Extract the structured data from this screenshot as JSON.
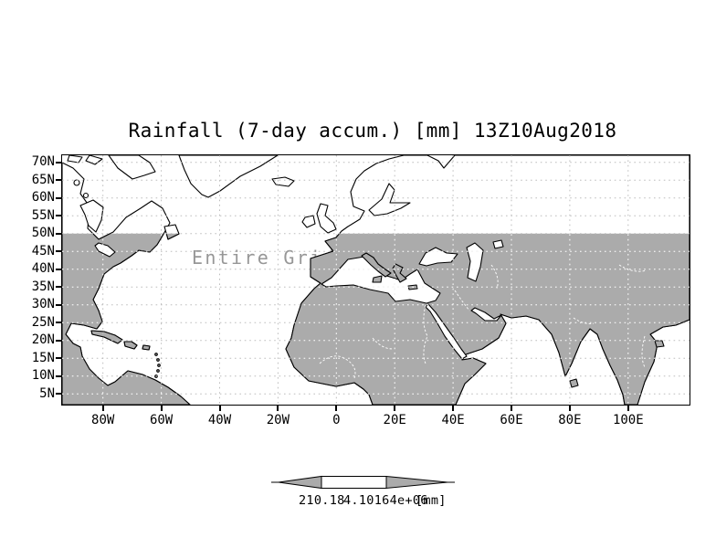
{
  "title": "Rainfall (7-day accum.) [mm] 13Z10Aug2018",
  "map": {
    "warning_text": "Entire Grid Undefined",
    "lat_labels": [
      "70N",
      "65N",
      "60N",
      "55N",
      "50N",
      "45N",
      "40N",
      "35N",
      "30N",
      "25N",
      "20N",
      "15N",
      "10N",
      "5N"
    ],
    "lon_labels": [
      "80W",
      "60W",
      "40W",
      "20W",
      "0",
      "20E",
      "40E",
      "60E",
      "80E",
      "100E"
    ],
    "colors": {
      "land_undefined_gray": "#ababab",
      "gridline_gray": "#bdbdbd",
      "warning_text_gray": "#979797",
      "coastline": "#000000"
    }
  },
  "colorbar": {
    "left_label": "210.18",
    "right_label": "4.10164e+06",
    "units_label": "[mm]",
    "arrow_fill": "#ababab"
  }
}
